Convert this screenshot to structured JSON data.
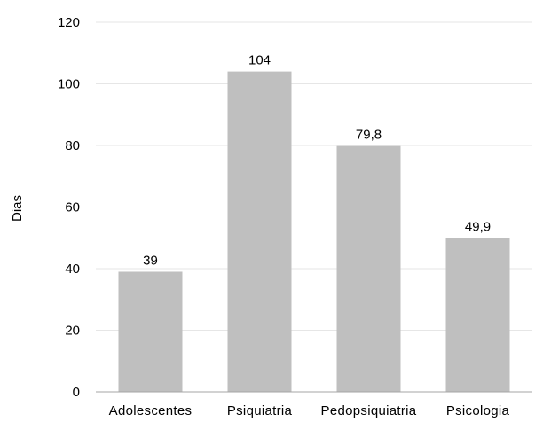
{
  "chart_data": {
    "type": "bar",
    "title": "",
    "xlabel": "",
    "ylabel": "Dias",
    "categories": [
      "Adolescentes",
      "Psiquiatria",
      "Pedopsiquiatria",
      "Psicologia"
    ],
    "values": [
      39,
      104,
      79.8,
      49.9
    ],
    "data_labels": [
      "39",
      "104",
      "79,8",
      "49,9"
    ],
    "yticks": [
      "0",
      "20",
      "40",
      "60",
      "80",
      "100",
      "120"
    ],
    "ylim": [
      0,
      120
    ],
    "ytick_step": 20,
    "grid": true,
    "legend": "none",
    "colors": {
      "bar": "#bfbfbf",
      "grid": "#e6e6e6",
      "axis": "#a6a6a6"
    }
  }
}
